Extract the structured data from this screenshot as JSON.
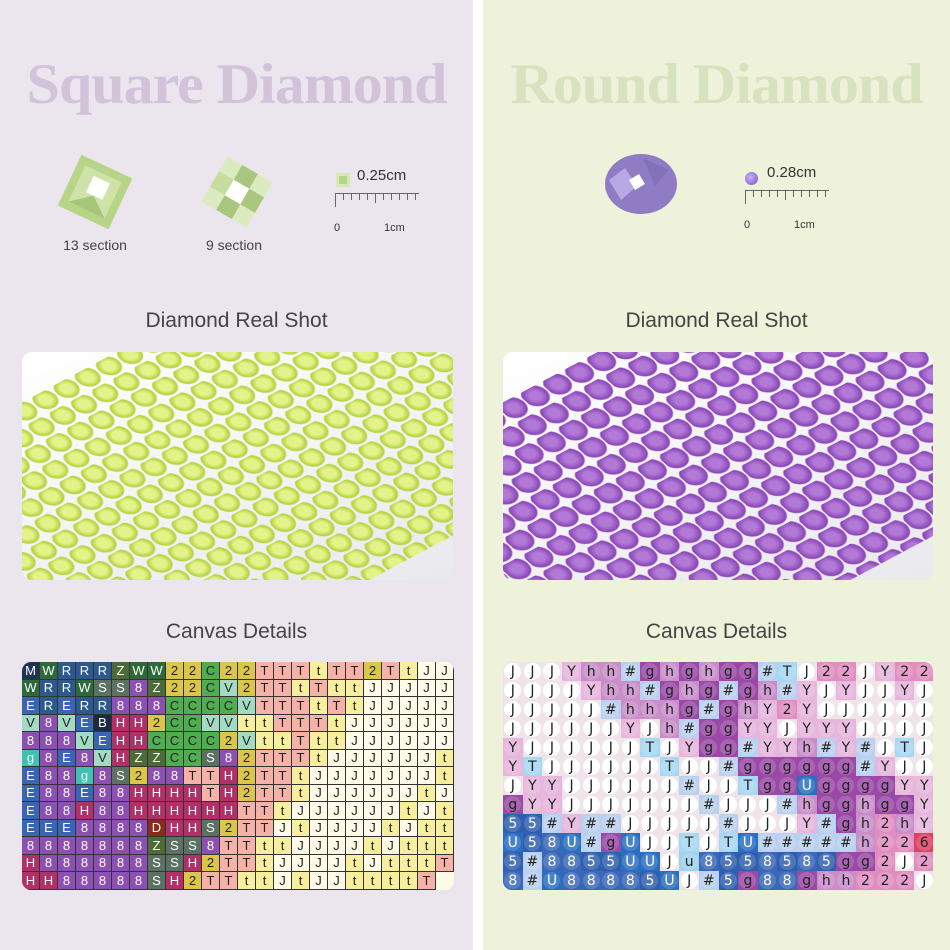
{
  "square": {
    "title": "Square Diamond",
    "gems": [
      {
        "label": "13 section"
      },
      {
        "label": "9 section"
      }
    ],
    "size": "0.25cm",
    "ruler_start": "0",
    "ruler_end": "1cm",
    "shot_heading": "Diamond Real Shot",
    "canvas_heading": "Canvas Details",
    "grid_rows": [
      "MWRRRZWW22C22TTTtTT2TtJJ",
      "WRRWSS8Z22CV2TTtTttJJJJJ",
      "ERERR888CCCCVTTTtTtJJJJJ",
      "V8VEBHH2CCVVttTTTtJJJJJJ",
      "888VEHHCCCC2VttTttJJJJJJ",
      "g8E8VHZZCCS82TTTtJJJJJJt",
      "E88g8S288TTH2TTtJJJJJJJt",
      "E88E88HHHHTH2TTtJJJJJJtJ",
      "E88H88HHHHHHTTtJJJJJJtJt",
      "EEE8888DHHS2TTJtJJJJtJtt",
      "8888888ZSS8TTttJJJJtJttt",
      "H888888SSH2TTtJJJJtJtttT",
      "HH88888SH2TTttJtJJttttT"
    ],
    "colors": {
      "M": "#1e3552",
      "W": "#2d6a3a",
      "R": "#2c5a8e",
      "E": "#3a64b4",
      "Z": "#4d6b36",
      "S": "#5b7262",
      "8": "#8c50b2",
      "2": "#dcc64a",
      "C": "#4eae50",
      "V": "#a2dac4",
      "T": "#f4b2a8",
      "t": "#f7ee9e",
      "J": "#fffbe8",
      "H": "#b23068",
      "B": "#1b2a40",
      "g": "#3fc2b2",
      "D": "#8c2a1a"
    }
  },
  "round": {
    "title": "Round Diamond",
    "size": "0.28cm",
    "ruler_start": "0",
    "ruler_end": "1cm",
    "shot_heading": "Diamond Real Shot",
    "canvas_heading": "Canvas Details",
    "grid_rows": [
      "JJJYhh#ghghgg#TJ22JY22",
      "JJJJYhh#ghg#gh#YJYJJYJ",
      "JJJJJ#hhhg#ghY2YJJJJJJ",
      "JJJJJJYJh#ggYYJYYYJJJJ",
      "YJJJJJJTJYgg#YYh#Y#JTJ",
      "YTJJJJJJTJJ#gggggg#YJJ",
      "JYYJJJJJJ#JJTggUggggYY",
      "gYYJJJJJJJ#JJJ#hgghggY",
      "55#Y##JJJJJ#JJJY#gh2hY",
      "U58U#gUJJTJTU#####h226",
      "5#8855UUJu855858 5gg2J2",
      "8#U88885UJ#5g88ghh222J"
    ],
    "colors": {
      "J": "#ffffff",
      "Y": "#e6b6dc",
      "h": "#c88ec8",
      "g": "#9a4aa6",
      "#": "#b9d0ee",
      "T": "#a6d8f2",
      "2": "#e08ec0",
      "U": "#2a6ec0",
      "5": "#2f5fae",
      "8": "#3a68b8",
      "u": "#a0d2ea",
      "6": "#e04062"
    }
  }
}
